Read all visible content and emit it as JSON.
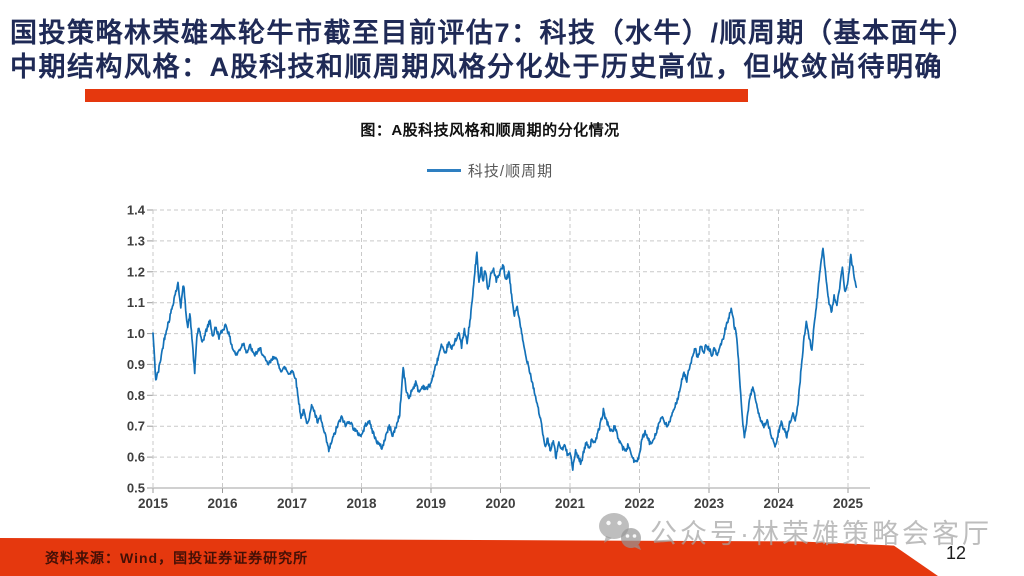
{
  "header": {
    "line1": "国投策略林荣雄本轮牛市截至目前评估7：科技（水牛）/顺周期（基本面牛）",
    "line2": "中期结构风格：A股科技和顺周期风格分化处于历史高位，但收敛尚待明确"
  },
  "watermark": {
    "text": "公众号·林荣雄策略会客厅",
    "icon": "wechat-icon"
  },
  "footer": {
    "source": "资料来源：Wind，国投证券证券研究所",
    "page": "12"
  },
  "colors": {
    "title_navy": "#1f2a56",
    "accent_red": "#e5380e",
    "line_blue": "#1371b8",
    "grid_gray": "#c9c9c9",
    "label_gray": "#3f3f3f",
    "legend_text": "#595959",
    "watermark_gray": "#a4a4a4"
  },
  "chart_data": {
    "type": "line",
    "title": "图：A股科技风格和顺周期的分化情况",
    "xlabel": "",
    "ylabel": "",
    "grid": true,
    "legend_position": "top-center",
    "ylim": [
      0.5,
      1.4
    ],
    "y_ticks": [
      0.5,
      0.6,
      0.7,
      0.8,
      0.9,
      1.0,
      1.1,
      1.2,
      1.3,
      1.4
    ],
    "x_ticks": [
      2015,
      2016,
      2017,
      2018,
      2019,
      2020,
      2021,
      2022,
      2023,
      2024,
      2025
    ],
    "xlim": [
      2015,
      2025.25
    ],
    "series": [
      {
        "name": "科技/顺周期",
        "points": [
          [
            2015.0,
            1.0
          ],
          [
            2015.04,
            0.85
          ],
          [
            2015.08,
            0.88
          ],
          [
            2015.12,
            0.93
          ],
          [
            2015.16,
            0.98
          ],
          [
            2015.2,
            1.02
          ],
          [
            2015.24,
            1.05
          ],
          [
            2015.28,
            1.09
          ],
          [
            2015.32,
            1.13
          ],
          [
            2015.36,
            1.16
          ],
          [
            2015.4,
            1.09
          ],
          [
            2015.44,
            1.16
          ],
          [
            2015.47,
            1.08
          ],
          [
            2015.5,
            1.02
          ],
          [
            2015.53,
            1.06
          ],
          [
            2015.56,
            0.99
          ],
          [
            2015.6,
            0.87
          ],
          [
            2015.63,
            0.99
          ],
          [
            2015.66,
            1.02
          ],
          [
            2015.7,
            0.97
          ],
          [
            2015.74,
            0.99
          ],
          [
            2015.78,
            1.02
          ],
          [
            2015.82,
            1.04
          ],
          [
            2015.86,
            0.99
          ],
          [
            2015.9,
            1.02
          ],
          [
            2015.95,
            0.99
          ],
          [
            2016.0,
            1.01
          ],
          [
            2016.05,
            1.03
          ],
          [
            2016.1,
            0.99
          ],
          [
            2016.15,
            0.95
          ],
          [
            2016.2,
            0.93
          ],
          [
            2016.25,
            0.95
          ],
          [
            2016.3,
            0.97
          ],
          [
            2016.35,
            0.94
          ],
          [
            2016.4,
            0.96
          ],
          [
            2016.45,
            0.93
          ],
          [
            2016.5,
            0.94
          ],
          [
            2016.55,
            0.95
          ],
          [
            2016.6,
            0.92
          ],
          [
            2016.65,
            0.9
          ],
          [
            2016.7,
            0.91
          ],
          [
            2016.75,
            0.93
          ],
          [
            2016.8,
            0.9
          ],
          [
            2016.85,
            0.88
          ],
          [
            2016.9,
            0.89
          ],
          [
            2016.95,
            0.87
          ],
          [
            2017.0,
            0.88
          ],
          [
            2017.05,
            0.86
          ],
          [
            2017.09,
            0.79
          ],
          [
            2017.13,
            0.73
          ],
          [
            2017.17,
            0.75
          ],
          [
            2017.21,
            0.71
          ],
          [
            2017.25,
            0.73
          ],
          [
            2017.29,
            0.77
          ],
          [
            2017.33,
            0.74
          ],
          [
            2017.37,
            0.71
          ],
          [
            2017.41,
            0.73
          ],
          [
            2017.45,
            0.69
          ],
          [
            2017.49,
            0.66
          ],
          [
            2017.53,
            0.62
          ],
          [
            2017.57,
            0.65
          ],
          [
            2017.62,
            0.68
          ],
          [
            2017.67,
            0.71
          ],
          [
            2017.72,
            0.73
          ],
          [
            2017.77,
            0.7
          ],
          [
            2017.82,
            0.72
          ],
          [
            2017.87,
            0.7
          ],
          [
            2017.93,
            0.68
          ],
          [
            2018.0,
            0.67
          ],
          [
            2018.05,
            0.7
          ],
          [
            2018.1,
            0.72
          ],
          [
            2018.15,
            0.69
          ],
          [
            2018.2,
            0.66
          ],
          [
            2018.25,
            0.64
          ],
          [
            2018.3,
            0.63
          ],
          [
            2018.35,
            0.67
          ],
          [
            2018.4,
            0.7
          ],
          [
            2018.45,
            0.67
          ],
          [
            2018.5,
            0.7
          ],
          [
            2018.55,
            0.74
          ],
          [
            2018.6,
            0.89
          ],
          [
            2018.64,
            0.82
          ],
          [
            2018.68,
            0.79
          ],
          [
            2018.73,
            0.82
          ],
          [
            2018.78,
            0.84
          ],
          [
            2018.83,
            0.81
          ],
          [
            2018.88,
            0.83
          ],
          [
            2018.94,
            0.82
          ],
          [
            2019.0,
            0.84
          ],
          [
            2019.05,
            0.88
          ],
          [
            2019.1,
            0.92
          ],
          [
            2019.15,
            0.96
          ],
          [
            2019.2,
            0.93
          ],
          [
            2019.25,
            0.97
          ],
          [
            2019.3,
            0.95
          ],
          [
            2019.35,
            0.98
          ],
          [
            2019.4,
            1.0
          ],
          [
            2019.44,
            0.96
          ],
          [
            2019.48,
            1.01
          ],
          [
            2019.52,
            0.97
          ],
          [
            2019.56,
            1.04
          ],
          [
            2019.6,
            1.12
          ],
          [
            2019.63,
            1.2
          ],
          [
            2019.66,
            1.26
          ],
          [
            2019.69,
            1.16
          ],
          [
            2019.72,
            1.22
          ],
          [
            2019.75,
            1.17
          ],
          [
            2019.78,
            1.21
          ],
          [
            2019.82,
            1.14
          ],
          [
            2019.86,
            1.19
          ],
          [
            2019.9,
            1.21
          ],
          [
            2019.94,
            1.17
          ],
          [
            2020.0,
            1.2
          ],
          [
            2020.04,
            1.22
          ],
          [
            2020.08,
            1.17
          ],
          [
            2020.12,
            1.2
          ],
          [
            2020.16,
            1.12
          ],
          [
            2020.2,
            1.06
          ],
          [
            2020.24,
            1.09
          ],
          [
            2020.28,
            1.03
          ],
          [
            2020.32,
            0.98
          ],
          [
            2020.36,
            0.93
          ],
          [
            2020.4,
            0.9
          ],
          [
            2020.44,
            0.86
          ],
          [
            2020.48,
            0.82
          ],
          [
            2020.52,
            0.78
          ],
          [
            2020.56,
            0.74
          ],
          [
            2020.6,
            0.69
          ],
          [
            2020.64,
            0.63
          ],
          [
            2020.68,
            0.66
          ],
          [
            2020.72,
            0.62
          ],
          [
            2020.76,
            0.65
          ],
          [
            2020.8,
            0.6
          ],
          [
            2020.84,
            0.65
          ],
          [
            2020.88,
            0.62
          ],
          [
            2020.92,
            0.64
          ],
          [
            2020.96,
            0.61
          ],
          [
            2021.0,
            0.62
          ],
          [
            2021.04,
            0.56
          ],
          [
            2021.08,
            0.62
          ],
          [
            2021.12,
            0.6
          ],
          [
            2021.16,
            0.58
          ],
          [
            2021.2,
            0.62
          ],
          [
            2021.24,
            0.65
          ],
          [
            2021.28,
            0.63
          ],
          [
            2021.32,
            0.66
          ],
          [
            2021.36,
            0.64
          ],
          [
            2021.4,
            0.68
          ],
          [
            2021.44,
            0.71
          ],
          [
            2021.48,
            0.75
          ],
          [
            2021.52,
            0.72
          ],
          [
            2021.56,
            0.7
          ],
          [
            2021.6,
            0.68
          ],
          [
            2021.64,
            0.7
          ],
          [
            2021.68,
            0.67
          ],
          [
            2021.72,
            0.65
          ],
          [
            2021.76,
            0.63
          ],
          [
            2021.8,
            0.62
          ],
          [
            2021.84,
            0.64
          ],
          [
            2021.88,
            0.61
          ],
          [
            2021.92,
            0.59
          ],
          [
            2021.96,
            0.58
          ],
          [
            2022.0,
            0.61
          ],
          [
            2022.04,
            0.66
          ],
          [
            2022.08,
            0.68
          ],
          [
            2022.12,
            0.66
          ],
          [
            2022.16,
            0.64
          ],
          [
            2022.2,
            0.66
          ],
          [
            2022.24,
            0.68
          ],
          [
            2022.28,
            0.71
          ],
          [
            2022.32,
            0.73
          ],
          [
            2022.36,
            0.71
          ],
          [
            2022.4,
            0.7
          ],
          [
            2022.44,
            0.72
          ],
          [
            2022.48,
            0.74
          ],
          [
            2022.52,
            0.77
          ],
          [
            2022.56,
            0.8
          ],
          [
            2022.6,
            0.84
          ],
          [
            2022.64,
            0.87
          ],
          [
            2022.68,
            0.85
          ],
          [
            2022.72,
            0.89
          ],
          [
            2022.76,
            0.92
          ],
          [
            2022.8,
            0.95
          ],
          [
            2022.84,
            0.92
          ],
          [
            2022.88,
            0.96
          ],
          [
            2022.92,
            0.94
          ],
          [
            2022.96,
            0.96
          ],
          [
            2023.0,
            0.95
          ],
          [
            2023.04,
            0.93
          ],
          [
            2023.08,
            0.95
          ],
          [
            2023.12,
            0.93
          ],
          [
            2023.16,
            0.96
          ],
          [
            2023.2,
            0.98
          ],
          [
            2023.24,
            1.02
          ],
          [
            2023.28,
            1.05
          ],
          [
            2023.32,
            1.08
          ],
          [
            2023.36,
            1.03
          ],
          [
            2023.4,
            0.99
          ],
          [
            2023.44,
            0.86
          ],
          [
            2023.48,
            0.72
          ],
          [
            2023.51,
            0.66
          ],
          [
            2023.55,
            0.73
          ],
          [
            2023.59,
            0.79
          ],
          [
            2023.63,
            0.83
          ],
          [
            2023.67,
            0.78
          ],
          [
            2023.71,
            0.74
          ],
          [
            2023.75,
            0.72
          ],
          [
            2023.79,
            0.7
          ],
          [
            2023.83,
            0.72
          ],
          [
            2023.87,
            0.69
          ],
          [
            2023.91,
            0.66
          ],
          [
            2023.95,
            0.63
          ],
          [
            2024.0,
            0.68
          ],
          [
            2024.04,
            0.71
          ],
          [
            2024.08,
            0.69
          ],
          [
            2024.12,
            0.67
          ],
          [
            2024.16,
            0.71
          ],
          [
            2024.2,
            0.74
          ],
          [
            2024.24,
            0.72
          ],
          [
            2024.28,
            0.77
          ],
          [
            2024.32,
            0.87
          ],
          [
            2024.36,
            0.97
          ],
          [
            2024.4,
            1.04
          ],
          [
            2024.44,
            0.99
          ],
          [
            2024.48,
            0.95
          ],
          [
            2024.52,
            1.04
          ],
          [
            2024.56,
            1.12
          ],
          [
            2024.6,
            1.21
          ],
          [
            2024.64,
            1.28
          ],
          [
            2024.68,
            1.19
          ],
          [
            2024.72,
            1.11
          ],
          [
            2024.76,
            1.07
          ],
          [
            2024.8,
            1.12
          ],
          [
            2024.84,
            1.09
          ],
          [
            2024.88,
            1.15
          ],
          [
            2024.92,
            1.21
          ],
          [
            2024.96,
            1.13
          ],
          [
            2025.0,
            1.17
          ],
          [
            2025.04,
            1.25
          ],
          [
            2025.08,
            1.2
          ],
          [
            2025.12,
            1.15
          ]
        ]
      }
    ]
  }
}
